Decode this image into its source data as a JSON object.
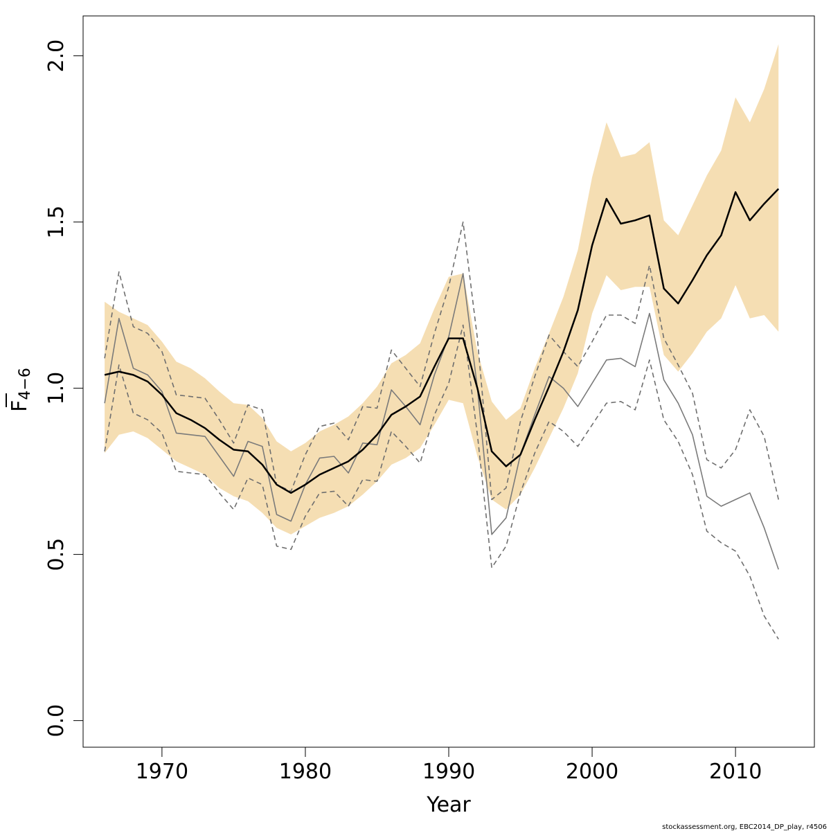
{
  "chart_data": {
    "type": "line",
    "xlabel": "Year",
    "ylabel_main": "F",
    "ylabel_sub": "4−6",
    "xlim": [
      1964.5,
      2015.5
    ],
    "ylim": [
      -0.08,
      2.12
    ],
    "x_ticks": [
      1970,
      1980,
      1990,
      2000,
      2010
    ],
    "x_tick_labels": [
      "1970",
      "1980",
      "1990",
      "2000",
      "2010"
    ],
    "y_ticks": [
      0.0,
      0.5,
      1.0,
      1.5,
      2.0
    ],
    "y_tick_labels": [
      "0.0",
      "0.5",
      "1.0",
      "1.5",
      "2.0"
    ],
    "grid": false,
    "colors": {
      "band": "#f5deb3",
      "main_line": "#000000",
      "alt_line": "#7a7a7a",
      "alt_dashed": "#6e6e6e"
    },
    "years": [
      1966,
      1967,
      1968,
      1969,
      1970,
      1971,
      1972,
      1973,
      1974,
      1975,
      1976,
      1977,
      1978,
      1979,
      1980,
      1981,
      1982,
      1983,
      1984,
      1985,
      1986,
      1987,
      1988,
      1989,
      1990,
      1991,
      1992,
      1993,
      1994,
      1995,
      1996,
      1997,
      1998,
      1999,
      2000,
      2001,
      2002,
      2003,
      2004,
      2005,
      2006,
      2007,
      2008,
      2009,
      2010,
      2011,
      2012,
      2013
    ],
    "band_upper": [
      1.26,
      1.23,
      1.21,
      1.19,
      1.14,
      1.08,
      1.06,
      1.03,
      0.99,
      0.955,
      0.95,
      0.91,
      0.84,
      0.81,
      0.835,
      0.87,
      0.89,
      0.915,
      0.955,
      1.005,
      1.075,
      1.1,
      1.135,
      1.24,
      1.335,
      1.345,
      1.11,
      0.96,
      0.905,
      0.94,
      1.06,
      1.165,
      1.275,
      1.415,
      1.635,
      1.8,
      1.695,
      1.705,
      1.74,
      1.505,
      1.46,
      1.55,
      1.64,
      1.715,
      1.875,
      1.8,
      1.9,
      2.035
    ],
    "band_lower": [
      0.805,
      0.86,
      0.87,
      0.85,
      0.815,
      0.78,
      0.76,
      0.74,
      0.7,
      0.675,
      0.66,
      0.625,
      0.58,
      0.56,
      0.585,
      0.61,
      0.625,
      0.645,
      0.68,
      0.72,
      0.77,
      0.79,
      0.82,
      0.89,
      0.965,
      0.955,
      0.795,
      0.665,
      0.635,
      0.68,
      0.76,
      0.85,
      0.94,
      1.045,
      1.225,
      1.34,
      1.295,
      1.305,
      1.305,
      1.1,
      1.05,
      1.105,
      1.17,
      1.21,
      1.31,
      1.21,
      1.22,
      1.17
    ],
    "series": [
      {
        "values": [
          1.04,
          1.05,
          1.04,
          1.02,
          0.98,
          0.925,
          0.905,
          0.88,
          0.845,
          0.815,
          0.81,
          0.77,
          0.71,
          0.685,
          0.71,
          0.74,
          0.76,
          0.78,
          0.815,
          0.86,
          0.92,
          0.945,
          0.975,
          1.065,
          1.15,
          1.15,
          1.0,
          0.81,
          0.765,
          0.8,
          0.905,
          1.005,
          1.11,
          1.235,
          1.43,
          1.57,
          1.495,
          1.505,
          1.52,
          1.3,
          1.255,
          1.325,
          1.4,
          1.46,
          1.59,
          1.505,
          1.555,
          1.6
        ]
      },
      {
        "values": [
          0.955,
          1.21,
          1.06,
          1.04,
          0.99,
          0.865,
          0.86,
          0.855,
          0.795,
          0.735,
          0.84,
          0.825,
          0.62,
          0.6,
          0.71,
          0.79,
          0.795,
          0.745,
          0.835,
          0.83,
          0.995,
          0.945,
          0.89,
          1.04,
          1.155,
          1.345,
          1.0,
          0.56,
          0.61,
          0.8,
          0.92,
          1.035,
          1.0,
          0.945,
          1.015,
          1.085,
          1.09,
          1.065,
          1.225,
          1.025,
          0.955,
          0.86,
          0.675,
          0.645,
          0.665,
          0.685,
          0.58,
          0.455
        ]
      },
      {
        "values": [
          1.09,
          1.35,
          1.185,
          1.165,
          1.11,
          0.98,
          0.975,
          0.97,
          0.905,
          0.835,
          0.95,
          0.935,
          0.71,
          0.69,
          0.8,
          0.885,
          0.895,
          0.845,
          0.945,
          0.94,
          1.115,
          1.06,
          1.005,
          1.165,
          1.305,
          1.5,
          1.15,
          0.665,
          0.7,
          0.9,
          1.035,
          1.16,
          1.11,
          1.065,
          1.14,
          1.22,
          1.22,
          1.195,
          1.37,
          1.15,
          1.07,
          0.985,
          0.785,
          0.76,
          0.815,
          0.935,
          0.855,
          0.665
        ]
      },
      {
        "values": [
          0.81,
          1.07,
          0.925,
          0.905,
          0.865,
          0.75,
          0.745,
          0.74,
          0.685,
          0.635,
          0.73,
          0.71,
          0.525,
          0.515,
          0.615,
          0.685,
          0.69,
          0.645,
          0.725,
          0.72,
          0.87,
          0.825,
          0.775,
          0.92,
          1.015,
          1.19,
          0.86,
          0.46,
          0.525,
          0.685,
          0.805,
          0.9,
          0.87,
          0.825,
          0.89,
          0.955,
          0.96,
          0.935,
          1.085,
          0.905,
          0.84,
          0.74,
          0.57,
          0.535,
          0.51,
          0.435,
          0.315,
          0.245
        ]
      }
    ]
  },
  "footer": "stockassessment.org, EBC2014_DP_play, r4506"
}
